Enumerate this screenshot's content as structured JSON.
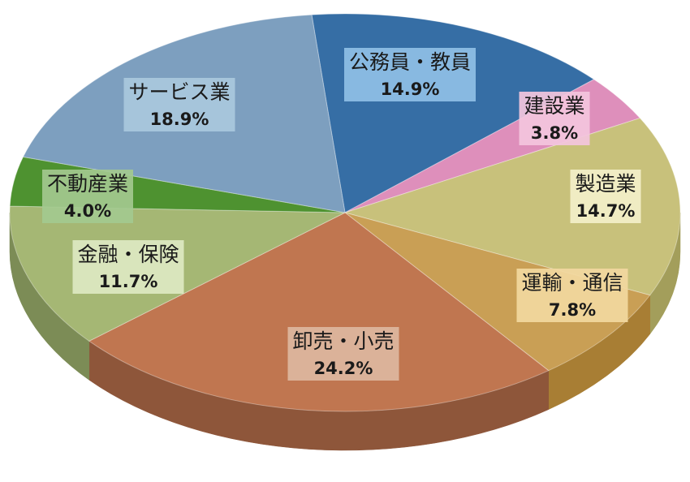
{
  "chart_data": {
    "type": "pie",
    "style": "3d",
    "slices": [
      {
        "label": "公務員・教員",
        "value_text": "14.9%",
        "value": 14.9,
        "color": "#366ea5",
        "side": "#26507b",
        "label_bg": "#8fbfe6"
      },
      {
        "label": "建設業",
        "value_text": "3.8%",
        "value": 3.8,
        "color": "#de8fbb",
        "side": "#b06a90",
        "label_bg": "#f3c6dd"
      },
      {
        "label": "製造業",
        "value_text": "14.7%",
        "value": 14.7,
        "color": "#c8c17b",
        "side": "#a39e5b",
        "label_bg": "#f3f0c9"
      },
      {
        "label": "運輸・通信",
        "value_text": "7.8%",
        "value": 7.8,
        "color": "#c99f55",
        "side": "#a87e34",
        "label_bg": "#f2d8a0"
      },
      {
        "label": "卸売・小売",
        "value_text": "24.2%",
        "value": 24.2,
        "color": "#c07650",
        "side": "#8e563a",
        "label_bg": "#ddb7a0"
      },
      {
        "label": "金融・保険",
        "value_text": "11.7%",
        "value": 11.7,
        "color": "#a5b774",
        "side": "#7c8c56",
        "label_bg": "#dde8c2"
      },
      {
        "label": "不動産業",
        "value_text": "4.0%",
        "value": 4.0,
        "color": "#4e9230",
        "side": "#3c6f23",
        "label_bg": "#a3c98f"
      },
      {
        "label": "サービス業",
        "value_text": "18.9%",
        "value": 18.9,
        "color": "#7d9fbf",
        "side": "#5f7d99",
        "label_bg": "#a9c8dd"
      }
    ]
  }
}
